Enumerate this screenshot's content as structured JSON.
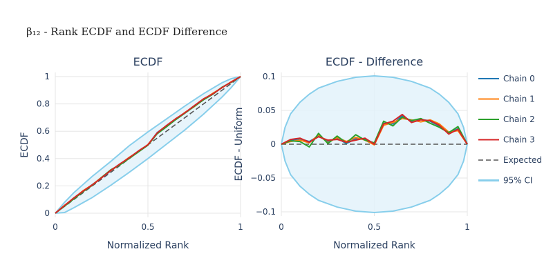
{
  "figure": {
    "title": "β₁₂ - Rank ECDF and ECDF Difference"
  },
  "colors": {
    "chain0": "#1f77b4",
    "chain1": "#ff7f0e",
    "chain2": "#2ca02c",
    "chain3": "#d62728",
    "expected": "#555555",
    "ci_line": "#87ceeb",
    "ci_fill": "#e3f2fa",
    "grid": "#e5e5e5"
  },
  "legend": {
    "items": [
      {
        "label": "Chain 0",
        "style": "line",
        "color": "#1f77b4"
      },
      {
        "label": "Chain 1",
        "style": "line",
        "color": "#ff7f0e"
      },
      {
        "label": "Chain 2",
        "style": "line",
        "color": "#2ca02c"
      },
      {
        "label": "Chain 3",
        "style": "line",
        "color": "#d62728"
      },
      {
        "label": "Expected",
        "style": "dash",
        "color": "#555555"
      },
      {
        "label": "95% CI",
        "style": "band",
        "color": "#87ceeb"
      }
    ]
  },
  "chart_data": [
    {
      "type": "line",
      "title": "ECDF",
      "xlabel": "Normalized Rank",
      "ylabel": "ECDF",
      "xlim": [
        0,
        1
      ],
      "ylim": [
        0,
        1
      ],
      "xticks": [
        0,
        0.5,
        1
      ],
      "xtick_labels": [
        "0",
        "0.5",
        "1"
      ],
      "yticks": [
        0,
        0.2,
        0.4,
        0.6,
        0.8,
        1
      ],
      "ytick_labels": [
        "0",
        "0.2",
        "0.4",
        "0.6",
        "0.8",
        "1"
      ],
      "grid": true,
      "ci_band": {
        "x": [
          0,
          0.05,
          0.1,
          0.2,
          0.3,
          0.4,
          0.5,
          0.6,
          0.7,
          0.8,
          0.9,
          0.95,
          1
        ],
        "lower": [
          0,
          0.005,
          0.04,
          0.115,
          0.205,
          0.3,
          0.4,
          0.505,
          0.61,
          0.725,
          0.85,
          0.92,
          1
        ],
        "upper": [
          0,
          0.08,
          0.15,
          0.27,
          0.38,
          0.495,
          0.595,
          0.69,
          0.785,
          0.875,
          0.955,
          0.985,
          1
        ]
      },
      "expected": {
        "x": [
          0,
          1
        ],
        "y": [
          0,
          1
        ]
      },
      "series": [
        {
          "name": "Chain 0",
          "x": [
            0,
            0.05,
            0.1,
            0.15,
            0.2,
            0.25,
            0.3,
            0.35,
            0.4,
            0.45,
            0.5,
            0.55,
            0.6,
            0.65,
            0.7,
            0.75,
            0.8,
            0.85,
            0.9,
            0.95,
            1
          ],
          "y": [
            0,
            0.055,
            0.11,
            0.16,
            0.21,
            0.26,
            0.31,
            0.36,
            0.405,
            0.455,
            0.5,
            0.59,
            0.64,
            0.69,
            0.735,
            0.785,
            0.835,
            0.875,
            0.92,
            0.96,
            1
          ]
        },
        {
          "name": "Chain 1",
          "x": [
            0,
            0.05,
            0.1,
            0.15,
            0.2,
            0.25,
            0.3,
            0.35,
            0.4,
            0.45,
            0.5,
            0.55,
            0.6,
            0.65,
            0.7,
            0.75,
            0.8,
            0.85,
            0.9,
            0.95,
            1
          ],
          "y": [
            0,
            0.058,
            0.108,
            0.165,
            0.208,
            0.263,
            0.312,
            0.358,
            0.41,
            0.452,
            0.503,
            0.585,
            0.638,
            0.687,
            0.738,
            0.78,
            0.832,
            0.878,
            0.918,
            0.962,
            1
          ]
        },
        {
          "name": "Chain 2",
          "x": [
            0,
            0.05,
            0.1,
            0.15,
            0.2,
            0.25,
            0.3,
            0.35,
            0.4,
            0.45,
            0.5,
            0.55,
            0.6,
            0.65,
            0.7,
            0.75,
            0.8,
            0.85,
            0.9,
            0.95,
            1
          ],
          "y": [
            0,
            0.052,
            0.105,
            0.158,
            0.204,
            0.262,
            0.318,
            0.355,
            0.402,
            0.45,
            0.498,
            0.582,
            0.632,
            0.685,
            0.733,
            0.782,
            0.83,
            0.87,
            0.922,
            0.958,
            1
          ]
        },
        {
          "name": "Chain 3",
          "x": [
            0,
            0.05,
            0.1,
            0.15,
            0.2,
            0.25,
            0.3,
            0.35,
            0.4,
            0.45,
            0.5,
            0.55,
            0.6,
            0.65,
            0.7,
            0.75,
            0.8,
            0.85,
            0.9,
            0.95,
            1
          ],
          "y": [
            0,
            0.056,
            0.112,
            0.162,
            0.207,
            0.259,
            0.314,
            0.362,
            0.407,
            0.457,
            0.501,
            0.588,
            0.642,
            0.692,
            0.736,
            0.787,
            0.837,
            0.873,
            0.919,
            0.961,
            1
          ]
        }
      ]
    },
    {
      "type": "line",
      "title": "ECDF - Difference",
      "xlabel": "Normalized Rank",
      "ylabel": "ECDF - Uniform",
      "xlim": [
        0,
        1
      ],
      "ylim": [
        -0.1,
        0.1
      ],
      "xticks": [
        0,
        0.5,
        1
      ],
      "xtick_labels": [
        "0",
        "0.5",
        "1"
      ],
      "yticks": [
        -0.1,
        -0.05,
        0,
        0.05,
        0.1
      ],
      "ytick_labels": [
        "−0.1",
        "−0.05",
        "0",
        "0.05",
        "0.1"
      ],
      "grid": true,
      "ci_band": {
        "x": [
          0,
          0.02,
          0.05,
          0.1,
          0.15,
          0.2,
          0.3,
          0.4,
          0.5,
          0.6,
          0.7,
          0.8,
          0.85,
          0.9,
          0.95,
          0.98,
          1
        ],
        "lower": [
          0,
          -0.025,
          -0.045,
          -0.062,
          -0.074,
          -0.083,
          -0.093,
          -0.099,
          -0.101,
          -0.099,
          -0.093,
          -0.083,
          -0.074,
          -0.062,
          -0.045,
          -0.025,
          0
        ],
        "upper": [
          0,
          0.025,
          0.045,
          0.062,
          0.074,
          0.083,
          0.093,
          0.099,
          0.101,
          0.099,
          0.093,
          0.083,
          0.074,
          0.062,
          0.045,
          0.025,
          0
        ]
      },
      "expected": {
        "x": [
          0,
          1
        ],
        "y": [
          0,
          0
        ]
      },
      "series": [
        {
          "name": "Chain 0",
          "x": [
            0,
            0.05,
            0.1,
            0.15,
            0.2,
            0.25,
            0.3,
            0.35,
            0.4,
            0.45,
            0.5,
            0.55,
            0.6,
            0.65,
            0.7,
            0.75,
            0.8,
            0.85,
            0.9,
            0.95,
            1
          ],
          "y": [
            0,
            0.006,
            0.008,
            0.004,
            0.012,
            0.004,
            0.009,
            0.001,
            0.008,
            0.008,
            0.001,
            0.031,
            0.03,
            0.042,
            0.034,
            0.037,
            0.034,
            0.027,
            0.016,
            0.023,
            0
          ]
        },
        {
          "name": "Chain 1",
          "x": [
            0,
            0.05,
            0.1,
            0.15,
            0.2,
            0.25,
            0.3,
            0.35,
            0.4,
            0.45,
            0.5,
            0.55,
            0.6,
            0.65,
            0.7,
            0.75,
            0.8,
            0.85,
            0.9,
            0.95,
            1
          ],
          "y": [
            0,
            0.004,
            0.006,
            0.002,
            0.014,
            0.002,
            0.01,
            0.004,
            0.01,
            0.006,
            -0.001,
            0.028,
            0.032,
            0.038,
            0.036,
            0.033,
            0.036,
            0.03,
            0.018,
            0.02,
            0
          ]
        },
        {
          "name": "Chain 2",
          "x": [
            0,
            0.05,
            0.1,
            0.15,
            0.2,
            0.25,
            0.3,
            0.35,
            0.4,
            0.45,
            0.5,
            0.55,
            0.6,
            0.65,
            0.7,
            0.75,
            0.8,
            0.85,
            0.9,
            0.95,
            1
          ],
          "y": [
            0,
            0.005,
            0.004,
            -0.004,
            0.016,
            0.001,
            0.012,
            0.002,
            0.014,
            0.006,
            0.002,
            0.034,
            0.027,
            0.04,
            0.035,
            0.038,
            0.031,
            0.025,
            0.017,
            0.026,
            0
          ]
        },
        {
          "name": "Chain 3",
          "x": [
            0,
            0.05,
            0.1,
            0.15,
            0.2,
            0.25,
            0.3,
            0.35,
            0.4,
            0.45,
            0.5,
            0.55,
            0.6,
            0.65,
            0.7,
            0.75,
            0.8,
            0.85,
            0.9,
            0.95,
            1
          ],
          "y": [
            0,
            0.007,
            0.009,
            0.003,
            0.011,
            0.006,
            0.007,
            0.003,
            0.006,
            0.009,
            0.0,
            0.03,
            0.034,
            0.044,
            0.032,
            0.036,
            0.035,
            0.028,
            0.015,
            0.022,
            0
          ]
        }
      ]
    }
  ]
}
